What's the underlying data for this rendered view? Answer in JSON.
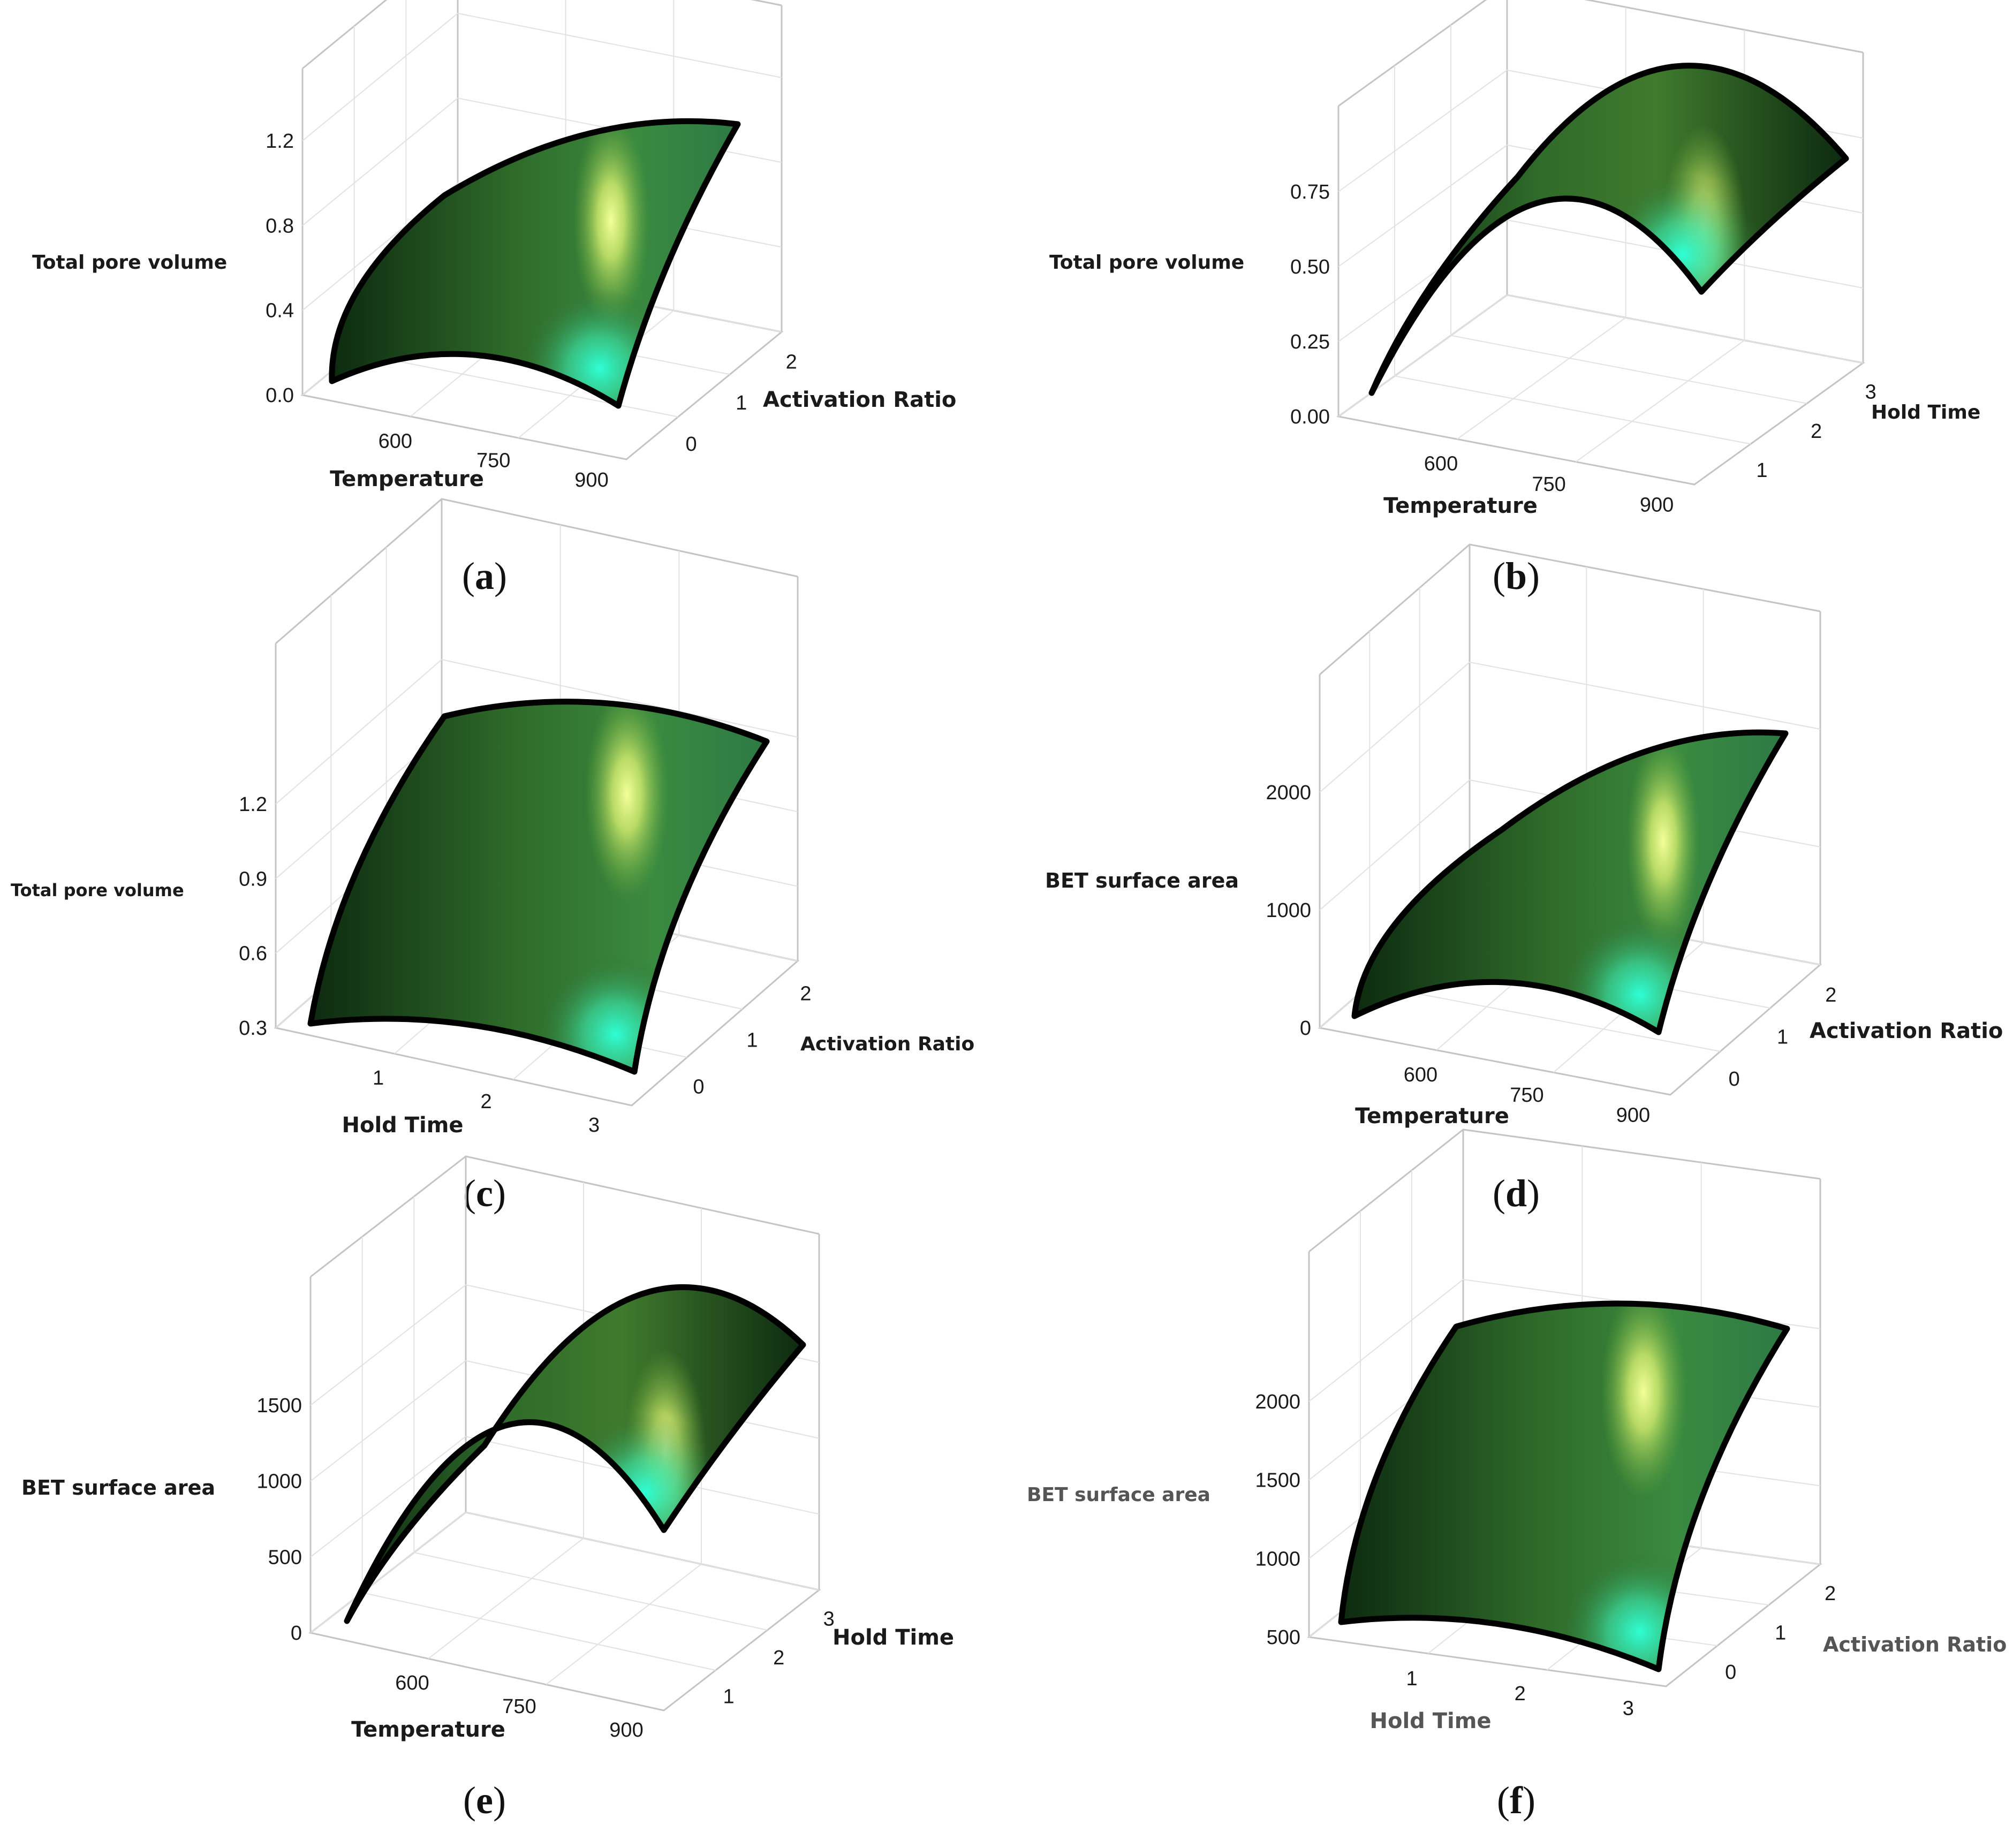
{
  "surface_colors": {
    "dark": "#0d2a10",
    "mid": "#2f6b2a",
    "light": "#6fb03c",
    "cyan": "#2effd5",
    "yellow": "#f4ff9a",
    "edge": "#000000",
    "frame": "#c4c4c4",
    "grid": "#e2e2e2"
  },
  "chart_data": [
    {
      "type": "surface3d",
      "caption_letter": "a",
      "z_label": "Total pore volume",
      "x_label": "Temperature",
      "y_label": "Activation Ratio",
      "z_ticks": [
        "1.2",
        "0.8",
        "0.4",
        "0.0"
      ],
      "x_ticks": [
        "600",
        "750",
        "900"
      ],
      "y_ticks": [
        "2",
        "1",
        "0"
      ]
    },
    {
      "type": "surface3d",
      "caption_letter": "b",
      "z_label": "Total pore volume",
      "x_label": "Temperature",
      "y_label": "Hold Time",
      "z_ticks": [
        "0.75",
        "0.50",
        "0.25",
        "0.00"
      ],
      "x_ticks": [
        "600",
        "750",
        "900"
      ],
      "y_ticks": [
        "3",
        "2",
        "1"
      ]
    },
    {
      "type": "surface3d",
      "caption_letter": "c",
      "z_label": "Total pore volume",
      "x_label": "Hold Time",
      "y_label": "Activation Ratio",
      "z_ticks": [
        "1.2",
        "0.9",
        "0.6",
        "0.3"
      ],
      "x_ticks": [
        "1",
        "2",
        "3"
      ],
      "y_ticks": [
        "2",
        "1",
        "0"
      ]
    },
    {
      "type": "surface3d",
      "caption_letter": "d",
      "z_label": "BET surface area",
      "x_label": "Temperature",
      "y_label": "Activation Ratio",
      "z_ticks": [
        "2000",
        "1000",
        "0"
      ],
      "x_ticks": [
        "600",
        "750",
        "900"
      ],
      "y_ticks": [
        "2",
        "1",
        "0"
      ]
    },
    {
      "type": "surface3d",
      "caption_letter": "e",
      "z_label": "BET surface area",
      "x_label": "Temperature",
      "y_label": "Hold Time",
      "z_ticks": [
        "1500",
        "1000",
        "500",
        "0"
      ],
      "x_ticks": [
        "600",
        "750",
        "900"
      ],
      "y_ticks": [
        "3",
        "2",
        "1"
      ]
    },
    {
      "type": "surface3d",
      "caption_letter": "f",
      "z_label": "BET surface area",
      "x_label": "Hold Time",
      "y_label": "Activation Ratio",
      "z_ticks": [
        "2000",
        "1500",
        "1000",
        "500"
      ],
      "x_ticks": [
        "1",
        "2",
        "3"
      ],
      "y_ticks": [
        "2",
        "1",
        "0"
      ]
    }
  ]
}
